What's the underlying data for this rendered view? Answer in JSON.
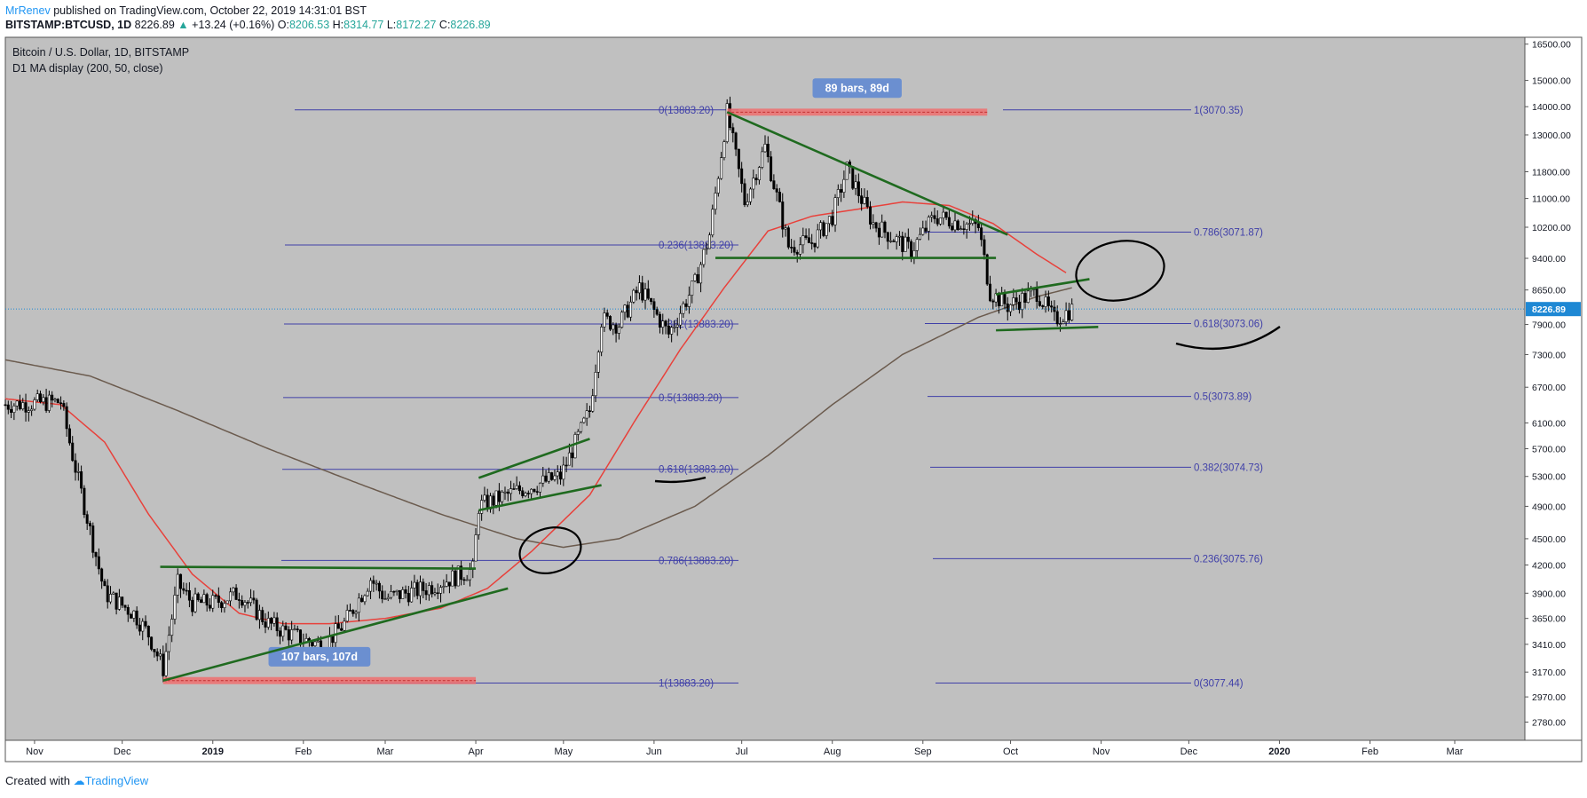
{
  "header": {
    "author": "MrRenev",
    "published": "published on TradingView.com, October 22, 2019 14:31:01 BST",
    "symbol": "BITSTAMP:BTCUSD, 1D",
    "last": "8226.89",
    "arrow": "▲",
    "change": "+13.24 (+0.16%)",
    "o_label": "O:",
    "o_val": "8206.53",
    "h_label": "H:",
    "h_val": "8314.77",
    "l_label": "L:",
    "l_val": "8172.27",
    "c_label": "C:",
    "c_val": "8226.89"
  },
  "legend": {
    "title": "Bitcoin / U.S. Dollar, 1D, BITSTAMP",
    "indicator": "D1 MA display (200, 50, close)"
  },
  "footer": {
    "created_with": "Created with",
    "brand": "TradingView"
  },
  "colors": {
    "plot_bg": "#c0c0c0",
    "candle": "#000000",
    "ma50": "#e8413b",
    "ma200": "#6b5b4e",
    "trend": "#1f6a1f",
    "fib": "#3f3fa8",
    "fib_text": "#3f3fa8",
    "range": "#ef6f6f",
    "badge": "#6b8fd0",
    "price_tag": "#1e88d4",
    "drawing": "#000000"
  },
  "chart_data": {
    "type": "candlestick",
    "title": "Bitcoin / U.S. Dollar, 1D, BITSTAMP",
    "y_scale": "log",
    "ylim": [
      2650,
      16800
    ],
    "y_ticks": [
      16500,
      15000,
      14000,
      13000,
      11800,
      11000,
      10200,
      9400,
      8650,
      7900,
      7300,
      6700,
      6100,
      5700,
      5300,
      4900,
      4500,
      4200,
      3900,
      3650,
      3410,
      3170,
      2970,
      2780
    ],
    "y_tick_labels": [
      "16500.00",
      "15000.00",
      "14000.00",
      "13000.00",
      "11800.00",
      "11000.00",
      "10200.00",
      "9400.00",
      "8650.00",
      "7900.00",
      "7300.00",
      "6700.00",
      "6100.00",
      "5700.00",
      "5300.00",
      "4900.00",
      "4500.00",
      "4200.00",
      "3900.00",
      "3650.00",
      "3410.00",
      "3170.00",
      "2970.00",
      "2780.00"
    ],
    "x_ticks": [
      {
        "label": "Nov",
        "date": "2018-11-01"
      },
      {
        "label": "Dec",
        "date": "2018-12-01"
      },
      {
        "label": "2019",
        "date": "2019-01-01"
      },
      {
        "label": "Feb",
        "date": "2019-02-01"
      },
      {
        "label": "Mar",
        "date": "2019-03-01"
      },
      {
        "label": "Apr",
        "date": "2019-04-01"
      },
      {
        "label": "May",
        "date": "2019-05-01"
      },
      {
        "label": "Jun",
        "date": "2019-06-01"
      },
      {
        "label": "Jul",
        "date": "2019-07-01"
      },
      {
        "label": "Aug",
        "date": "2019-08-01"
      },
      {
        "label": "Sep",
        "date": "2019-09-01"
      },
      {
        "label": "Oct",
        "date": "2019-10-01"
      },
      {
        "label": "Nov",
        "date": "2019-11-01"
      },
      {
        "label": "Dec",
        "date": "2019-12-01"
      },
      {
        "label": "2020",
        "date": "2020-01-01"
      },
      {
        "label": "Feb",
        "date": "2020-02-01"
      },
      {
        "label": "Mar",
        "date": "2020-03-01"
      }
    ],
    "x_range": [
      "2018-10-22",
      "2020-03-25"
    ],
    "price_keypoints": [
      [
        "2018-10-22",
        6400
      ],
      [
        "2018-11-10",
        6450
      ],
      [
        "2018-11-14",
        5600
      ],
      [
        "2018-11-20",
        4600
      ],
      [
        "2018-11-25",
        3900
      ],
      [
        "2018-12-05",
        3700
      ],
      [
        "2018-12-10",
        3500
      ],
      [
        "2018-12-15",
        3200
      ],
      [
        "2018-12-20",
        4000
      ],
      [
        "2018-12-25",
        3800
      ],
      [
        "2019-01-01",
        3800
      ],
      [
        "2019-01-10",
        3900
      ],
      [
        "2019-01-20",
        3600
      ],
      [
        "2019-02-01",
        3450
      ],
      [
        "2019-02-08",
        3400
      ],
      [
        "2019-02-15",
        3600
      ],
      [
        "2019-02-24",
        4050
      ],
      [
        "2019-03-01",
        3850
      ],
      [
        "2019-03-15",
        3950
      ],
      [
        "2019-03-31",
        4150
      ],
      [
        "2019-04-02",
        4900
      ],
      [
        "2019-04-15",
        5100
      ],
      [
        "2019-04-30",
        5300
      ],
      [
        "2019-05-10",
        6300
      ],
      [
        "2019-05-14",
        8000
      ],
      [
        "2019-05-20",
        7900
      ],
      [
        "2019-05-27",
        8700
      ],
      [
        "2019-06-06",
        7700
      ],
      [
        "2019-06-15",
        8800
      ],
      [
        "2019-06-20",
        10000
      ],
      [
        "2019-06-26",
        13800
      ],
      [
        "2019-07-02",
        10900
      ],
      [
        "2019-07-09",
        12600
      ],
      [
        "2019-07-17",
        9700
      ],
      [
        "2019-07-25",
        9800
      ],
      [
        "2019-08-01",
        10500
      ],
      [
        "2019-08-06",
        11900
      ],
      [
        "2019-08-15",
        10300
      ],
      [
        "2019-08-28",
        9600
      ],
      [
        "2019-09-05",
        10500
      ],
      [
        "2019-09-20",
        10200
      ],
      [
        "2019-09-24",
        8600
      ],
      [
        "2019-09-30",
        8300
      ],
      [
        "2019-10-10",
        8600
      ],
      [
        "2019-10-16",
        8000
      ],
      [
        "2019-10-22",
        8226
      ]
    ],
    "ma50_keypoints": [
      [
        "2018-10-22",
        6500
      ],
      [
        "2018-11-10",
        6400
      ],
      [
        "2018-11-25",
        5800
      ],
      [
        "2018-12-10",
        4800
      ],
      [
        "2018-12-25",
        4100
      ],
      [
        "2019-01-10",
        3700
      ],
      [
        "2019-01-25",
        3600
      ],
      [
        "2019-02-10",
        3600
      ],
      [
        "2019-03-01",
        3650
      ],
      [
        "2019-03-20",
        3750
      ],
      [
        "2019-04-05",
        3950
      ],
      [
        "2019-04-20",
        4350
      ],
      [
        "2019-05-10",
        5050
      ],
      [
        "2019-05-25",
        6100
      ],
      [
        "2019-06-10",
        7400
      ],
      [
        "2019-06-25",
        8700
      ],
      [
        "2019-07-10",
        10100
      ],
      [
        "2019-07-25",
        10500
      ],
      [
        "2019-08-10",
        10700
      ],
      [
        "2019-08-25",
        10900
      ],
      [
        "2019-09-10",
        10800
      ],
      [
        "2019-09-25",
        10300
      ],
      [
        "2019-10-10",
        9500
      ],
      [
        "2019-10-20",
        9050
      ]
    ],
    "ma200_keypoints": [
      [
        "2018-10-22",
        7200
      ],
      [
        "2018-11-20",
        6900
      ],
      [
        "2018-12-20",
        6300
      ],
      [
        "2019-01-20",
        5700
      ],
      [
        "2019-02-20",
        5200
      ],
      [
        "2019-03-20",
        4800
      ],
      [
        "2019-04-15",
        4500
      ],
      [
        "2019-05-01",
        4400
      ],
      [
        "2019-05-20",
        4500
      ],
      [
        "2019-06-15",
        4900
      ],
      [
        "2019-07-10",
        5600
      ],
      [
        "2019-08-01",
        6400
      ],
      [
        "2019-08-25",
        7300
      ],
      [
        "2019-09-20",
        8050
      ],
      [
        "2019-10-10",
        8500
      ],
      [
        "2019-10-22",
        8700
      ]
    ],
    "last_price": 8226.89,
    "last_price_label": "8226.89",
    "fib_left": [
      {
        "label": "0(13883.20)",
        "price": 13883
      },
      {
        "label": "0.236(13883.20)",
        "price": 9734
      },
      {
        "label": "0.382(13883.20)",
        "price": 7910
      },
      {
        "label": "0.5(13883.20)",
        "price": 6520
      },
      {
        "label": "0.618(13883.20)",
        "price": 5400
      },
      {
        "label": "0.786(13883.20)",
        "price": 4250
      },
      {
        "label": "1(13883.20)",
        "price": 3080
      }
    ],
    "fib_right": [
      {
        "label": "1(3070.35)",
        "price": 13883
      },
      {
        "label": "0.786(3071.87)",
        "price": 10070
      },
      {
        "label": "0.618(3073.06)",
        "price": 7920
      },
      {
        "label": "0.5(3073.89)",
        "price": 6540
      },
      {
        "label": "0.382(3074.73)",
        "price": 5430
      },
      {
        "label": "0.236(3075.76)",
        "price": 4270
      },
      {
        "label": "0(3077.44)",
        "price": 3080
      }
    ],
    "range_markers": [
      {
        "label": "107 bars, 107d",
        "from": "2018-12-15",
        "to": "2019-04-01",
        "price": 3100,
        "badge_price": 3300
      },
      {
        "label": "89 bars, 89d",
        "from": "2019-06-26",
        "to": "2019-09-23",
        "price": 13800,
        "badge_price": 14700
      }
    ],
    "trend_lines": [
      [
        [
          "2018-12-14",
          4180
        ],
        [
          "2019-04-01",
          4160
        ]
      ],
      [
        [
          "2018-12-15",
          3100
        ],
        [
          "2019-04-12",
          3950
        ]
      ],
      [
        [
          "2019-04-02",
          5280
        ],
        [
          "2019-05-10",
          5850
        ]
      ],
      [
        [
          "2019-04-02",
          4850
        ],
        [
          "2019-05-14",
          5180
        ]
      ],
      [
        [
          "2019-06-26",
          13800
        ],
        [
          "2019-09-30",
          10000
        ]
      ],
      [
        [
          "2019-06-22",
          9410
        ],
        [
          "2019-09-26",
          9410
        ]
      ],
      [
        [
          "2019-09-26",
          8550
        ],
        [
          "2019-10-28",
          8900
        ]
      ],
      [
        [
          "2019-09-26",
          7780
        ],
        [
          "2019-10-31",
          7850
        ]
      ]
    ]
  }
}
